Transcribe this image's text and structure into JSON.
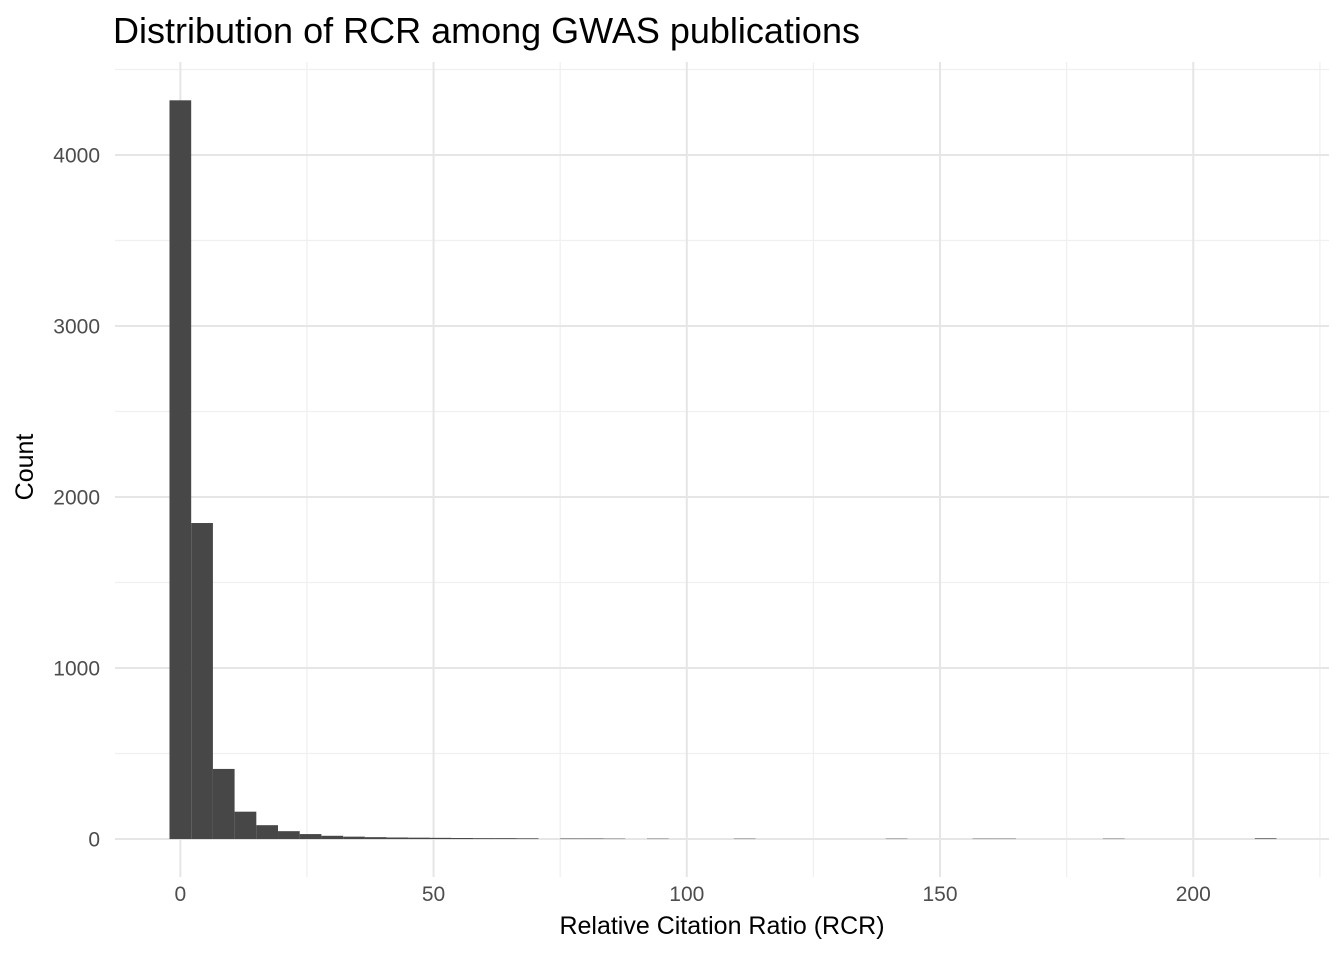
{
  "chart": {
    "background": "#ffffff"
  },
  "chart_data": {
    "type": "bar",
    "subtype": "histogram",
    "title": "Distribution of RCR among GWAS publications",
    "xlabel": "Relative Citation Ratio (RCR)",
    "ylabel": "Count",
    "grid": "on",
    "legend": "none",
    "bin_width": 4.2857,
    "xlim": [
      -12.9,
      226.8
    ],
    "ylim": [
      -222,
      4544
    ],
    "x_ticks": [
      {
        "value": 0,
        "label": "0"
      },
      {
        "value": 50,
        "label": "50"
      },
      {
        "value": 100,
        "label": "100"
      },
      {
        "value": 150,
        "label": "150"
      },
      {
        "value": 200,
        "label": "200"
      }
    ],
    "x_minor_ticks": [
      25,
      75,
      125,
      175,
      225
    ],
    "y_ticks": [
      {
        "value": 0,
        "label": "0"
      },
      {
        "value": 1000,
        "label": "1000"
      },
      {
        "value": 2000,
        "label": "2000"
      },
      {
        "value": 3000,
        "label": "3000"
      },
      {
        "value": 4000,
        "label": "4000"
      }
    ],
    "y_minor_ticks": [
      500,
      1500,
      2500,
      3500,
      4500
    ],
    "bins": [
      {
        "center": 0,
        "count": 4320
      },
      {
        "center": 4.29,
        "count": 1848
      },
      {
        "center": 8.57,
        "count": 410
      },
      {
        "center": 12.86,
        "count": 160
      },
      {
        "center": 17.14,
        "count": 81
      },
      {
        "center": 21.43,
        "count": 46
      },
      {
        "center": 25.71,
        "count": 29
      },
      {
        "center": 30,
        "count": 19
      },
      {
        "center": 34.29,
        "count": 14
      },
      {
        "center": 38.57,
        "count": 11
      },
      {
        "center": 42.86,
        "count": 9
      },
      {
        "center": 47.14,
        "count": 8
      },
      {
        "center": 51.43,
        "count": 7
      },
      {
        "center": 55.71,
        "count": 6
      },
      {
        "center": 60,
        "count": 5
      },
      {
        "center": 64.29,
        "count": 5
      },
      {
        "center": 68.57,
        "count": 4
      },
      {
        "center": 72.86,
        "count": 0
      },
      {
        "center": 77.14,
        "count": 3
      },
      {
        "center": 81.43,
        "count": 3
      },
      {
        "center": 85.71,
        "count": 2
      },
      {
        "center": 90,
        "count": 0
      },
      {
        "center": 94.29,
        "count": 2
      },
      {
        "center": 98.57,
        "count": 0
      },
      {
        "center": 102.86,
        "count": 0
      },
      {
        "center": 107.14,
        "count": 0
      },
      {
        "center": 111.43,
        "count": 2
      },
      {
        "center": 115.71,
        "count": 0
      },
      {
        "center": 120,
        "count": 0
      },
      {
        "center": 124.29,
        "count": 0
      },
      {
        "center": 128.57,
        "count": 0
      },
      {
        "center": 132.86,
        "count": 0
      },
      {
        "center": 137.14,
        "count": 0
      },
      {
        "center": 141.43,
        "count": 2
      },
      {
        "center": 145.71,
        "count": 0
      },
      {
        "center": 150,
        "count": 0
      },
      {
        "center": 154.29,
        "count": 0
      },
      {
        "center": 158.57,
        "count": 2
      },
      {
        "center": 162.86,
        "count": 2
      },
      {
        "center": 167.14,
        "count": 0
      },
      {
        "center": 171.43,
        "count": 0
      },
      {
        "center": 175.71,
        "count": 0
      },
      {
        "center": 180,
        "count": 0
      },
      {
        "center": 184.29,
        "count": 2
      },
      {
        "center": 188.57,
        "count": 0
      },
      {
        "center": 192.86,
        "count": 0
      },
      {
        "center": 197.14,
        "count": 0
      },
      {
        "center": 201.43,
        "count": 0
      },
      {
        "center": 205.71,
        "count": 0
      },
      {
        "center": 210,
        "count": 0
      },
      {
        "center": 214.29,
        "count": 4
      }
    ],
    "colors": {
      "bar": "#474747",
      "grid_major": "#e6e6e6",
      "grid_minor": "#f0f0f0",
      "axis_text": "#4d4d4d",
      "title_text": "#000000",
      "background": "#ffffff"
    }
  }
}
